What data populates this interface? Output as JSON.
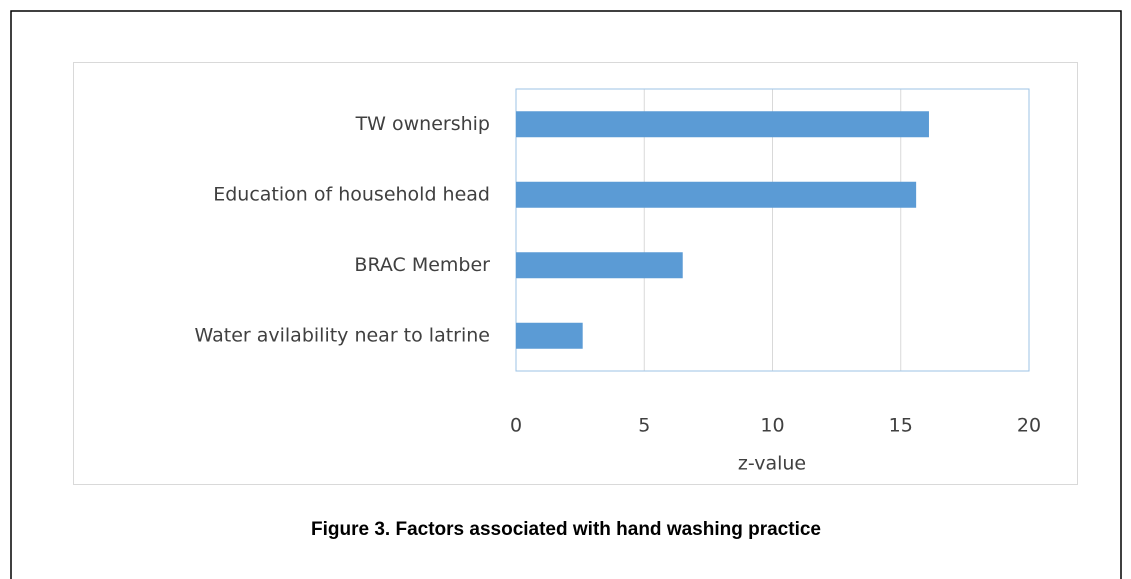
{
  "chart_data": {
    "type": "bar",
    "orientation": "horizontal",
    "categories": [
      "TW ownership",
      "Education of household head",
      "BRAC Member",
      "Water avilability near to latrine"
    ],
    "values": [
      16.1,
      15.6,
      6.5,
      2.6
    ],
    "color": "#5b9bd5",
    "xlim": [
      0,
      20
    ],
    "xticks": [
      0,
      5,
      10,
      15,
      20
    ],
    "grid": true,
    "x_label": "z-value",
    "caption": "Figure 3. Factors associated with hand washing practice"
  }
}
